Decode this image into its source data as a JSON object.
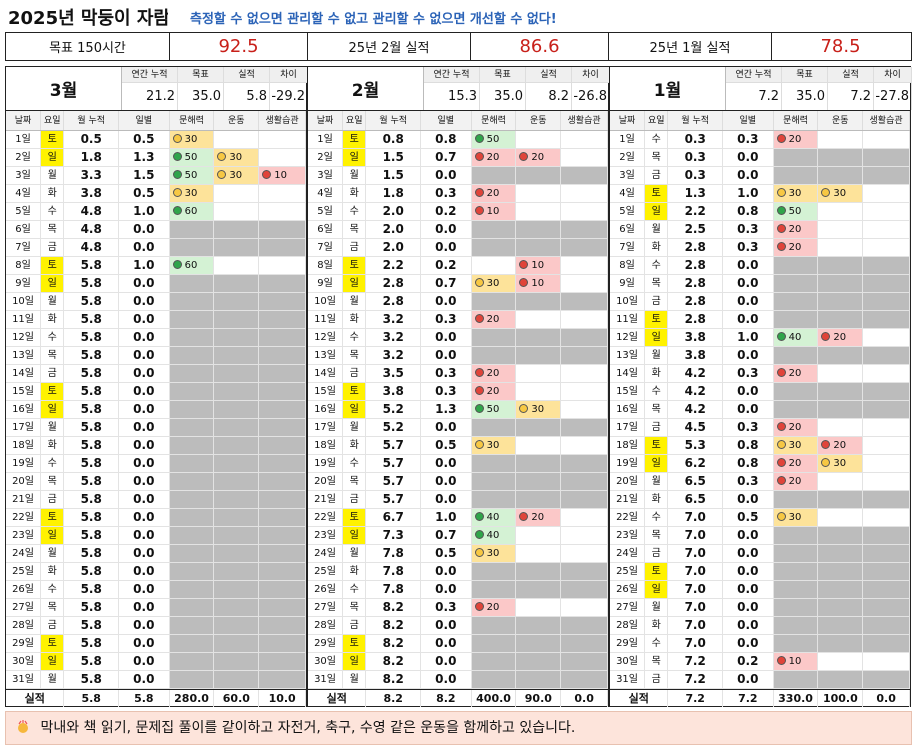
{
  "title": "2025년 막둥이 자람",
  "slogan": "측정할 수 없으면 관리할 수 없고 관리할 수 없으면 개선할 수 없다!",
  "summary": {
    "goal_label": "목표 150시간",
    "goal_value": "92.5",
    "feb_label": "25년 2월 실적",
    "feb_value": "86.6",
    "jan_label": "25년 1월 실적",
    "jan_value": "78.5"
  },
  "headers": {
    "annual": "연간 누적",
    "goal": "목표",
    "actual": "실적",
    "diff": "차이",
    "cols": [
      "날짜",
      "요일",
      "월 누적",
      "일별",
      "문해력",
      "운동",
      "생활습관"
    ],
    "total": "실적"
  },
  "note": "막내와 책 읽기, 문제집 풀이를 같이하고 자전거, 축구, 수영 같은 운동을 함께하고 있습니다.",
  "note_icon": "hands-icon",
  "colors": {
    "accent": "#c8201a",
    "slogan": "#2b63b7",
    "weekend": "#fff200",
    "green": "#2fa54a",
    "orange": "#f7c843",
    "red": "#e0443a"
  },
  "months": [
    {
      "name": "3월",
      "annual": "21.2",
      "goal": "35.0",
      "actual": "5.8",
      "diff": "-29.2",
      "total": {
        "cum": "5.8",
        "day": "5.8",
        "a": "280.0",
        "b": "60.0",
        "c": "10.0"
      },
      "rows": [
        [
          "1일",
          "토",
          "0.5",
          "0.5",
          [
            "o",
            "30"
          ],
          null,
          null
        ],
        [
          "2일",
          "일",
          "1.8",
          "1.3",
          [
            "g",
            "50"
          ],
          [
            "o",
            "30"
          ],
          null
        ],
        [
          "3일",
          "월",
          "3.3",
          "1.5",
          [
            "g",
            "50"
          ],
          [
            "o",
            "30"
          ],
          [
            "r",
            "10"
          ]
        ],
        [
          "4일",
          "화",
          "3.8",
          "0.5",
          [
            "o",
            "30"
          ],
          null,
          null
        ],
        [
          "5일",
          "수",
          "4.8",
          "1.0",
          [
            "g",
            "60"
          ],
          null,
          null
        ],
        [
          "6일",
          "목",
          "4.8",
          "0.0",
          null,
          null,
          null
        ],
        [
          "7일",
          "금",
          "4.8",
          "0.0",
          null,
          null,
          null
        ],
        [
          "8일",
          "토",
          "5.8",
          "1.0",
          [
            "g",
            "60"
          ],
          null,
          null
        ],
        [
          "9일",
          "일",
          "5.8",
          "0.0",
          null,
          null,
          null
        ],
        [
          "10일",
          "월",
          "5.8",
          "0.0",
          null,
          null,
          null
        ],
        [
          "11일",
          "화",
          "5.8",
          "0.0",
          null,
          null,
          null
        ],
        [
          "12일",
          "수",
          "5.8",
          "0.0",
          null,
          null,
          null
        ],
        [
          "13일",
          "목",
          "5.8",
          "0.0",
          null,
          null,
          null
        ],
        [
          "14일",
          "금",
          "5.8",
          "0.0",
          null,
          null,
          null
        ],
        [
          "15일",
          "토",
          "5.8",
          "0.0",
          null,
          null,
          null
        ],
        [
          "16일",
          "일",
          "5.8",
          "0.0",
          null,
          null,
          null
        ],
        [
          "17일",
          "월",
          "5.8",
          "0.0",
          null,
          null,
          null
        ],
        [
          "18일",
          "화",
          "5.8",
          "0.0",
          null,
          null,
          null
        ],
        [
          "19일",
          "수",
          "5.8",
          "0.0",
          null,
          null,
          null
        ],
        [
          "20일",
          "목",
          "5.8",
          "0.0",
          null,
          null,
          null
        ],
        [
          "21일",
          "금",
          "5.8",
          "0.0",
          null,
          null,
          null
        ],
        [
          "22일",
          "토",
          "5.8",
          "0.0",
          null,
          null,
          null
        ],
        [
          "23일",
          "일",
          "5.8",
          "0.0",
          null,
          null,
          null
        ],
        [
          "24일",
          "월",
          "5.8",
          "0.0",
          null,
          null,
          null
        ],
        [
          "25일",
          "화",
          "5.8",
          "0.0",
          null,
          null,
          null
        ],
        [
          "26일",
          "수",
          "5.8",
          "0.0",
          null,
          null,
          null
        ],
        [
          "27일",
          "목",
          "5.8",
          "0.0",
          null,
          null,
          null
        ],
        [
          "28일",
          "금",
          "5.8",
          "0.0",
          null,
          null,
          null
        ],
        [
          "29일",
          "토",
          "5.8",
          "0.0",
          null,
          null,
          null
        ],
        [
          "30일",
          "일",
          "5.8",
          "0.0",
          null,
          null,
          null
        ],
        [
          "31일",
          "월",
          "5.8",
          "0.0",
          null,
          null,
          null
        ]
      ]
    },
    {
      "name": "2월",
      "annual": "15.3",
      "goal": "35.0",
      "actual": "8.2",
      "diff": "-26.8",
      "total": {
        "cum": "8.2",
        "day": "8.2",
        "a": "400.0",
        "b": "90.0",
        "c": "0.0"
      },
      "rows": [
        [
          "1일",
          "토",
          "0.8",
          "0.8",
          [
            "g",
            "50"
          ],
          null,
          null
        ],
        [
          "2일",
          "일",
          "1.5",
          "0.7",
          [
            "r",
            "20"
          ],
          [
            "r",
            "20"
          ],
          null
        ],
        [
          "3일",
          "월",
          "1.5",
          "0.0",
          null,
          null,
          null
        ],
        [
          "4일",
          "화",
          "1.8",
          "0.3",
          [
            "r",
            "20"
          ],
          null,
          null
        ],
        [
          "5일",
          "수",
          "2.0",
          "0.2",
          [
            "r",
            "10"
          ],
          null,
          null
        ],
        [
          "6일",
          "목",
          "2.0",
          "0.0",
          null,
          null,
          null
        ],
        [
          "7일",
          "금",
          "2.0",
          "0.0",
          null,
          null,
          null
        ],
        [
          "8일",
          "토",
          "2.2",
          "0.2",
          null,
          [
            "r",
            "10"
          ],
          null
        ],
        [
          "9일",
          "일",
          "2.8",
          "0.7",
          [
            "o",
            "30"
          ],
          [
            "r",
            "10"
          ],
          null
        ],
        [
          "10일",
          "월",
          "2.8",
          "0.0",
          null,
          null,
          null
        ],
        [
          "11일",
          "화",
          "3.2",
          "0.3",
          [
            "r",
            "20"
          ],
          null,
          null
        ],
        [
          "12일",
          "수",
          "3.2",
          "0.0",
          null,
          null,
          null
        ],
        [
          "13일",
          "목",
          "3.2",
          "0.0",
          null,
          null,
          null
        ],
        [
          "14일",
          "금",
          "3.5",
          "0.3",
          [
            "r",
            "20"
          ],
          null,
          null
        ],
        [
          "15일",
          "토",
          "3.8",
          "0.3",
          [
            "r",
            "20"
          ],
          null,
          null
        ],
        [
          "16일",
          "일",
          "5.2",
          "1.3",
          [
            "g",
            "50"
          ],
          [
            "o",
            "30"
          ],
          null
        ],
        [
          "17일",
          "월",
          "5.2",
          "0.0",
          null,
          null,
          null
        ],
        [
          "18일",
          "화",
          "5.7",
          "0.5",
          [
            "o",
            "30"
          ],
          null,
          null
        ],
        [
          "19일",
          "수",
          "5.7",
          "0.0",
          null,
          null,
          null
        ],
        [
          "20일",
          "목",
          "5.7",
          "0.0",
          null,
          null,
          null
        ],
        [
          "21일",
          "금",
          "5.7",
          "0.0",
          null,
          null,
          null
        ],
        [
          "22일",
          "토",
          "6.7",
          "1.0",
          [
            "g",
            "40"
          ],
          [
            "r",
            "20"
          ],
          null
        ],
        [
          "23일",
          "일",
          "7.3",
          "0.7",
          [
            "g",
            "40"
          ],
          null,
          null
        ],
        [
          "24일",
          "월",
          "7.8",
          "0.5",
          [
            "o",
            "30"
          ],
          null,
          null
        ],
        [
          "25일",
          "화",
          "7.8",
          "0.0",
          null,
          null,
          null
        ],
        [
          "26일",
          "수",
          "7.8",
          "0.0",
          null,
          null,
          null
        ],
        [
          "27일",
          "목",
          "8.2",
          "0.3",
          [
            "r",
            "20"
          ],
          null,
          null
        ],
        [
          "28일",
          "금",
          "8.2",
          "0.0",
          null,
          null,
          null
        ],
        [
          "29일",
          "토",
          "8.2",
          "0.0",
          null,
          null,
          null
        ],
        [
          "30일",
          "일",
          "8.2",
          "0.0",
          null,
          null,
          null
        ],
        [
          "31일",
          "월",
          "8.2",
          "0.0",
          null,
          null,
          null
        ]
      ]
    },
    {
      "name": "1월",
      "annual": "7.2",
      "goal": "35.0",
      "actual": "7.2",
      "diff": "-27.8",
      "total": {
        "cum": "7.2",
        "day": "7.2",
        "a": "330.0",
        "b": "100.0",
        "c": "0.0"
      },
      "rows": [
        [
          "1일",
          "수",
          "0.3",
          "0.3",
          [
            "r",
            "20"
          ],
          null,
          null
        ],
        [
          "2일",
          "목",
          "0.3",
          "0.0",
          null,
          null,
          null
        ],
        [
          "3일",
          "금",
          "0.3",
          "0.0",
          null,
          null,
          null
        ],
        [
          "4일",
          "토",
          "1.3",
          "1.0",
          [
            "o",
            "30"
          ],
          [
            "o",
            "30"
          ],
          null
        ],
        [
          "5일",
          "일",
          "2.2",
          "0.8",
          [
            "g",
            "50"
          ],
          null,
          null
        ],
        [
          "6일",
          "월",
          "2.5",
          "0.3",
          [
            "r",
            "20"
          ],
          null,
          null
        ],
        [
          "7일",
          "화",
          "2.8",
          "0.3",
          [
            "r",
            "20"
          ],
          null,
          null
        ],
        [
          "8일",
          "수",
          "2.8",
          "0.0",
          null,
          null,
          null
        ],
        [
          "9일",
          "목",
          "2.8",
          "0.0",
          null,
          null,
          null
        ],
        [
          "10일",
          "금",
          "2.8",
          "0.0",
          null,
          null,
          null
        ],
        [
          "11일",
          "토",
          "2.8",
          "0.0",
          null,
          null,
          null
        ],
        [
          "12일",
          "일",
          "3.8",
          "1.0",
          [
            "g",
            "40"
          ],
          [
            "r",
            "20"
          ],
          null
        ],
        [
          "13일",
          "월",
          "3.8",
          "0.0",
          null,
          null,
          null
        ],
        [
          "14일",
          "화",
          "4.2",
          "0.3",
          [
            "r",
            "20"
          ],
          null,
          null
        ],
        [
          "15일",
          "수",
          "4.2",
          "0.0",
          null,
          null,
          null
        ],
        [
          "16일",
          "목",
          "4.2",
          "0.0",
          null,
          null,
          null
        ],
        [
          "17일",
          "금",
          "4.5",
          "0.3",
          [
            "r",
            "20"
          ],
          null,
          null
        ],
        [
          "18일",
          "토",
          "5.3",
          "0.8",
          [
            "o",
            "30"
          ],
          [
            "r",
            "20"
          ],
          null
        ],
        [
          "19일",
          "일",
          "6.2",
          "0.8",
          [
            "r",
            "20"
          ],
          [
            "o",
            "30"
          ],
          null
        ],
        [
          "20일",
          "월",
          "6.5",
          "0.3",
          [
            "r",
            "20"
          ],
          null,
          null
        ],
        [
          "21일",
          "화",
          "6.5",
          "0.0",
          null,
          null,
          null
        ],
        [
          "22일",
          "수",
          "7.0",
          "0.5",
          [
            "o",
            "30"
          ],
          null,
          null
        ],
        [
          "23일",
          "목",
          "7.0",
          "0.0",
          null,
          null,
          null
        ],
        [
          "24일",
          "금",
          "7.0",
          "0.0",
          null,
          null,
          null
        ],
        [
          "25일",
          "토",
          "7.0",
          "0.0",
          null,
          null,
          null
        ],
        [
          "26일",
          "일",
          "7.0",
          "0.0",
          null,
          null,
          null
        ],
        [
          "27일",
          "월",
          "7.0",
          "0.0",
          null,
          null,
          null
        ],
        [
          "28일",
          "화",
          "7.0",
          "0.0",
          null,
          null,
          null
        ],
        [
          "29일",
          "수",
          "7.0",
          "0.0",
          null,
          null,
          null
        ],
        [
          "30일",
          "목",
          "7.2",
          "0.2",
          [
            "r",
            "10"
          ],
          null,
          null
        ],
        [
          "31일",
          "금",
          "7.2",
          "0.0",
          null,
          null,
          null
        ]
      ]
    }
  ]
}
